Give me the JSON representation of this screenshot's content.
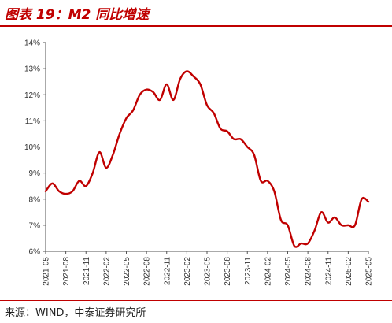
{
  "title": "图表 19：M2 同比增速",
  "source": "来源：WIND，中泰证券研究所",
  "colors": {
    "accent": "#c00000",
    "line": "#c00000"
  },
  "chart_data": {
    "type": "line",
    "ylim": [
      6,
      14
    ],
    "yticks": [
      "6%",
      "7%",
      "8%",
      "9%",
      "10%",
      "11%",
      "12%",
      "13%",
      "14%"
    ],
    "xticks": [
      "2021-05",
      "2021-08",
      "2021-11",
      "2022-02",
      "2022-05",
      "2022-08",
      "2022-11",
      "2023-02",
      "2023-05",
      "2023-08",
      "2023-11",
      "2024-02",
      "2024-05",
      "2024-08",
      "2024-11",
      "2025-02",
      "2025-05"
    ],
    "grid": false,
    "legend": "none",
    "series": [
      {
        "x": [
          "2021-05",
          "2021-06",
          "2021-07",
          "2021-08",
          "2021-09",
          "2021-10",
          "2021-11",
          "2021-12",
          "2022-01",
          "2022-02",
          "2022-03",
          "2022-04",
          "2022-05",
          "2022-06",
          "2022-07",
          "2022-08",
          "2022-09",
          "2022-10",
          "2022-11",
          "2022-12",
          "2023-01",
          "2023-02",
          "2023-03",
          "2023-04",
          "2023-05",
          "2023-06",
          "2023-07",
          "2023-08",
          "2023-09",
          "2023-10",
          "2023-11",
          "2023-12",
          "2024-01",
          "2024-02",
          "2024-03",
          "2024-04",
          "2024-05",
          "2024-06",
          "2024-07",
          "2024-08",
          "2024-09",
          "2024-10",
          "2024-11",
          "2024-12",
          "2025-01",
          "2025-02",
          "2025-03",
          "2025-04",
          "2025-05"
        ],
        "values": [
          8.3,
          8.6,
          8.3,
          8.2,
          8.3,
          8.7,
          8.5,
          9.0,
          9.8,
          9.2,
          9.7,
          10.5,
          11.1,
          11.4,
          12.0,
          12.2,
          12.1,
          11.8,
          12.4,
          11.8,
          12.6,
          12.9,
          12.7,
          12.4,
          11.6,
          11.3,
          10.7,
          10.6,
          10.3,
          10.3,
          10.0,
          9.7,
          8.7,
          8.7,
          8.3,
          7.2,
          7.0,
          6.2,
          6.3,
          6.3,
          6.8,
          7.5,
          7.1,
          7.3,
          7.0,
          7.0,
          7.0,
          8.0,
          7.9
        ]
      }
    ]
  }
}
